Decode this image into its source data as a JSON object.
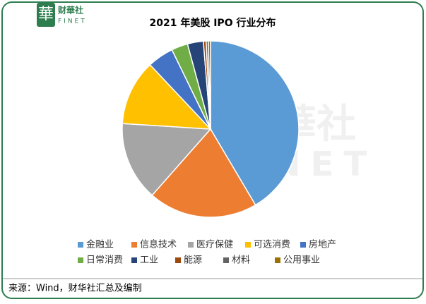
{
  "logo": {
    "mark": "華",
    "name": "财華社",
    "sub": "FINET"
  },
  "chart_data": {
    "type": "pie",
    "title": "2021 年美股 IPO 行业分布",
    "categories": [
      "金融业",
      "信息技术",
      "医疗保健",
      "可选消费",
      "房地产",
      "日常消费",
      "工业",
      "能源",
      "材料",
      "公用事业"
    ],
    "values": [
      41.5,
      20,
      14.5,
      12,
      4.8,
      3,
      2.9,
      0.5,
      0.4,
      0.4
    ],
    "colors": [
      "#5b9bd5",
      "#ed7d31",
      "#a5a5a5",
      "#ffc000",
      "#4472c4",
      "#70ad47",
      "#264478",
      "#9e480e",
      "#636363",
      "#997300"
    ],
    "legend": "bottom"
  },
  "source": "来源：Wind，财华社汇总及编制"
}
